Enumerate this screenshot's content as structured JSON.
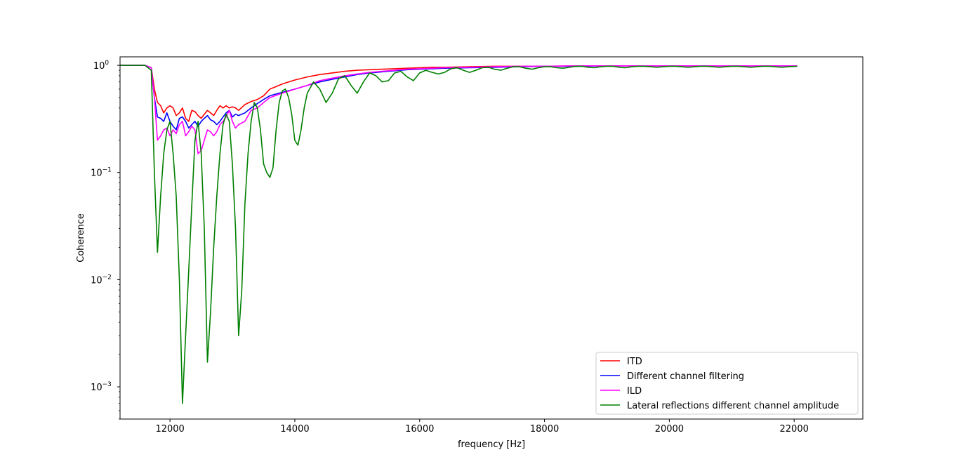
{
  "chart_data": {
    "type": "line",
    "title": "",
    "xlabel": "frequency [Hz]",
    "ylabel": "Coherence",
    "xlim": [
      11200,
      23100
    ],
    "ylim": [
      0.0005,
      1.2
    ],
    "yscale": "log",
    "grid": false,
    "legend_position": "lower-right",
    "x_ticks": [
      {
        "value": 12000,
        "label": "12000"
      },
      {
        "value": 14000,
        "label": "14000"
      },
      {
        "value": 16000,
        "label": "16000"
      },
      {
        "value": 18000,
        "label": "18000"
      },
      {
        "value": 20000,
        "label": "20000"
      },
      {
        "value": 22000,
        "label": "22000"
      }
    ],
    "y_ticks": [
      {
        "value": 1,
        "base": "10",
        "exp": "0"
      },
      {
        "value": 0.1,
        "base": "10",
        "exp": "−1"
      },
      {
        "value": 0.01,
        "base": "10",
        "exp": "−2"
      },
      {
        "value": 0.001,
        "base": "10",
        "exp": "−3"
      }
    ],
    "series": [
      {
        "name": "ITD",
        "color": "#ff0000",
        "x": [
          11200,
          11600,
          11700,
          11750,
          11800,
          11850,
          11900,
          11950,
          12000,
          12050,
          12100,
          12150,
          12200,
          12250,
          12300,
          12350,
          12400,
          12450,
          12500,
          12550,
          12600,
          12650,
          12700,
          12750,
          12800,
          12850,
          12900,
          12950,
          13000,
          13050,
          13100,
          13200,
          13300,
          13400,
          13500,
          13600,
          13800,
          14000,
          14200,
          14400,
          14600,
          14800,
          15000,
          15200,
          15400,
          15600,
          15800,
          16000,
          16200,
          16400,
          16800,
          17200,
          17600,
          18000,
          18500,
          19000,
          19500,
          20000,
          20500,
          21000,
          21500,
          22050
        ],
        "y": [
          1.0,
          1.0,
          0.95,
          0.6,
          0.45,
          0.42,
          0.36,
          0.4,
          0.42,
          0.4,
          0.34,
          0.36,
          0.4,
          0.32,
          0.3,
          0.38,
          0.37,
          0.34,
          0.32,
          0.35,
          0.38,
          0.36,
          0.34,
          0.38,
          0.42,
          0.4,
          0.42,
          0.4,
          0.41,
          0.4,
          0.38,
          0.43,
          0.46,
          0.48,
          0.52,
          0.6,
          0.67,
          0.73,
          0.78,
          0.82,
          0.85,
          0.88,
          0.9,
          0.91,
          0.92,
          0.93,
          0.94,
          0.95,
          0.96,
          0.96,
          0.97,
          0.98,
          0.98,
          0.98,
          0.99,
          0.99,
          0.99,
          0.99,
          0.99,
          0.99,
          0.99,
          0.99
        ]
      },
      {
        "name": "Different channel filtering",
        "color": "#0000ff",
        "x": [
          11200,
          11600,
          11700,
          11750,
          11800,
          11850,
          11900,
          11950,
          12000,
          12050,
          12100,
          12150,
          12200,
          12250,
          12300,
          12350,
          12400,
          12450,
          12500,
          12550,
          12600,
          12650,
          12700,
          12750,
          12800,
          12850,
          12900,
          12950,
          13000,
          13050,
          13100,
          13200,
          13300,
          13400,
          13500,
          13600,
          13800,
          14000,
          14200,
          14400,
          14600,
          14800,
          15000,
          15200,
          15400,
          15600,
          15800,
          16000,
          16200,
          16400,
          16800,
          17200,
          17600,
          18000,
          18500,
          19000,
          19500,
          20000,
          20500,
          21000,
          21500,
          22050
        ],
        "y": [
          1.0,
          1.0,
          0.95,
          0.5,
          0.33,
          0.32,
          0.3,
          0.36,
          0.3,
          0.27,
          0.25,
          0.32,
          0.33,
          0.3,
          0.26,
          0.28,
          0.3,
          0.27,
          0.3,
          0.32,
          0.34,
          0.31,
          0.3,
          0.28,
          0.3,
          0.33,
          0.36,
          0.38,
          0.33,
          0.35,
          0.34,
          0.36,
          0.4,
          0.44,
          0.48,
          0.52,
          0.56,
          0.6,
          0.65,
          0.7,
          0.74,
          0.78,
          0.82,
          0.85,
          0.87,
          0.89,
          0.91,
          0.92,
          0.93,
          0.94,
          0.95,
          0.96,
          0.97,
          0.98,
          0.98,
          0.99,
          0.99,
          0.99,
          0.99,
          0.99,
          0.99,
          0.99
        ]
      },
      {
        "name": "ILD",
        "color": "#ff00ff",
        "x": [
          11200,
          11600,
          11700,
          11750,
          11800,
          11850,
          11900,
          11950,
          12000,
          12050,
          12100,
          12150,
          12200,
          12250,
          12300,
          12350,
          12400,
          12450,
          12500,
          12550,
          12600,
          12650,
          12700,
          12750,
          12800,
          12850,
          12900,
          12950,
          13000,
          13050,
          13100,
          13200,
          13300,
          13400,
          13500,
          13600,
          13800,
          14000,
          14200,
          14400,
          14600,
          14800,
          15000,
          15200,
          15400,
          15600,
          15800,
          16000,
          16200,
          16400,
          16800,
          17200,
          17600,
          18000,
          18500,
          19000,
          19500,
          20000,
          20500,
          21000,
          21500,
          22050
        ],
        "y": [
          1.0,
          1.0,
          0.95,
          0.5,
          0.2,
          0.22,
          0.25,
          0.26,
          0.22,
          0.25,
          0.23,
          0.28,
          0.3,
          0.22,
          0.24,
          0.27,
          0.25,
          0.15,
          0.16,
          0.2,
          0.25,
          0.24,
          0.22,
          0.24,
          0.28,
          0.3,
          0.33,
          0.38,
          0.3,
          0.26,
          0.28,
          0.3,
          0.38,
          0.4,
          0.45,
          0.5,
          0.55,
          0.6,
          0.65,
          0.72,
          0.76,
          0.8,
          0.83,
          0.86,
          0.88,
          0.9,
          0.92,
          0.93,
          0.94,
          0.95,
          0.96,
          0.97,
          0.98,
          0.98,
          0.99,
          0.99,
          0.99,
          0.99,
          0.99,
          0.99,
          0.99,
          0.99
        ]
      },
      {
        "name": "Lateral reflections different channel amplitude",
        "color": "#008000",
        "x": [
          11200,
          11600,
          11700,
          11750,
          11800,
          11850,
          11900,
          11950,
          12000,
          12050,
          12100,
          12150,
          12200,
          12250,
          12300,
          12350,
          12400,
          12450,
          12500,
          12550,
          12600,
          12650,
          12700,
          12750,
          12800,
          12850,
          12900,
          12950,
          13000,
          13050,
          13100,
          13150,
          13200,
          13250,
          13300,
          13350,
          13400,
          13450,
          13500,
          13550,
          13600,
          13650,
          13700,
          13750,
          13800,
          13850,
          13900,
          13950,
          14000,
          14050,
          14100,
          14150,
          14200,
          14300,
          14400,
          14500,
          14600,
          14700,
          14800,
          14900,
          15000,
          15100,
          15200,
          15300,
          15400,
          15500,
          15600,
          15700,
          15800,
          15900,
          16000,
          16100,
          16200,
          16300,
          16400,
          16500,
          16600,
          16700,
          16800,
          16900,
          17000,
          17100,
          17200,
          17300,
          17400,
          17500,
          17600,
          17700,
          17800,
          17900,
          18000,
          18100,
          18200,
          18300,
          18400,
          18500,
          18600,
          18700,
          18800,
          18900,
          19000,
          19100,
          19200,
          19300,
          19400,
          19500,
          19600,
          19700,
          19800,
          19900,
          20000,
          20100,
          20200,
          20300,
          20400,
          20500,
          20600,
          20700,
          20800,
          20900,
          21000,
          21100,
          21200,
          21300,
          21400,
          21500,
          21600,
          21700,
          21800,
          21900,
          22050
        ],
        "y": [
          1.0,
          1.0,
          0.9,
          0.1,
          0.018,
          0.06,
          0.15,
          0.25,
          0.3,
          0.15,
          0.06,
          0.01,
          0.0007,
          0.003,
          0.012,
          0.05,
          0.2,
          0.3,
          0.15,
          0.03,
          0.0017,
          0.005,
          0.02,
          0.06,
          0.15,
          0.28,
          0.35,
          0.3,
          0.12,
          0.03,
          0.003,
          0.008,
          0.05,
          0.15,
          0.3,
          0.45,
          0.4,
          0.25,
          0.12,
          0.1,
          0.09,
          0.11,
          0.25,
          0.45,
          0.58,
          0.6,
          0.5,
          0.35,
          0.2,
          0.18,
          0.25,
          0.4,
          0.55,
          0.7,
          0.6,
          0.45,
          0.55,
          0.75,
          0.8,
          0.65,
          0.55,
          0.7,
          0.85,
          0.8,
          0.7,
          0.72,
          0.85,
          0.88,
          0.78,
          0.72,
          0.85,
          0.9,
          0.86,
          0.83,
          0.86,
          0.93,
          0.95,
          0.9,
          0.86,
          0.9,
          0.95,
          0.96,
          0.92,
          0.9,
          0.94,
          0.97,
          0.97,
          0.94,
          0.92,
          0.95,
          0.97,
          0.97,
          0.95,
          0.94,
          0.96,
          0.98,
          0.98,
          0.96,
          0.95,
          0.97,
          0.98,
          0.98,
          0.96,
          0.95,
          0.97,
          0.98,
          0.98,
          0.97,
          0.96,
          0.97,
          0.98,
          0.98,
          0.97,
          0.96,
          0.97,
          0.98,
          0.98,
          0.97,
          0.96,
          0.97,
          0.98,
          0.98,
          0.97,
          0.96,
          0.97,
          0.98,
          0.98,
          0.97,
          0.96,
          0.97,
          0.98
        ]
      }
    ]
  }
}
